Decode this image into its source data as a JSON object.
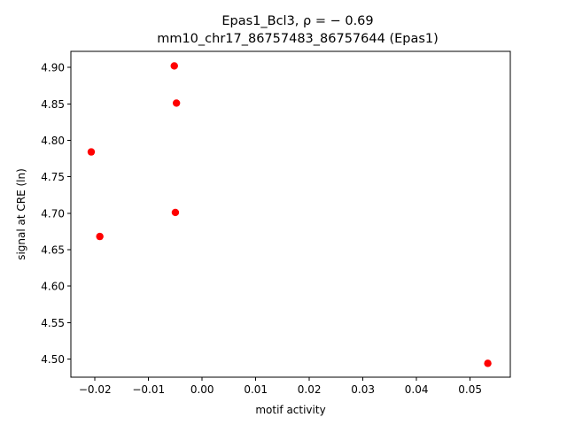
{
  "chart_data": {
    "type": "scatter",
    "title_lines": [
      "Epas1_Bcl3, ρ = − 0.69",
      "mm10_chr17_86757483_86757644 (Epas1)"
    ],
    "xlabel": "motif activity",
    "ylabel": "signal at CRE (ln)",
    "xlim": [
      -0.0245,
      0.0575
    ],
    "ylim": [
      4.475,
      4.922
    ],
    "x_ticks": [
      -0.02,
      -0.01,
      0.0,
      0.01,
      0.02,
      0.03,
      0.04,
      0.05
    ],
    "x_tick_labels": [
      "−0.02",
      "−0.01",
      "0.00",
      "0.01",
      "0.02",
      "0.03",
      "0.04",
      "0.05"
    ],
    "y_ticks": [
      4.5,
      4.55,
      4.6,
      4.65,
      4.7,
      4.75,
      4.8,
      4.85,
      4.9
    ],
    "y_tick_labels": [
      "4.50",
      "4.55",
      "4.60",
      "4.65",
      "4.70",
      "4.75",
      "4.80",
      "4.85",
      "4.90"
    ],
    "grid": false,
    "marker_color": "#ff0000",
    "points": [
      {
        "x": -0.0052,
        "y": 4.902
      },
      {
        "x": -0.0048,
        "y": 4.851
      },
      {
        "x": -0.0207,
        "y": 4.784
      },
      {
        "x": -0.005,
        "y": 4.701
      },
      {
        "x": -0.0191,
        "y": 4.668
      },
      {
        "x": 0.0533,
        "y": 4.494
      }
    ]
  }
}
